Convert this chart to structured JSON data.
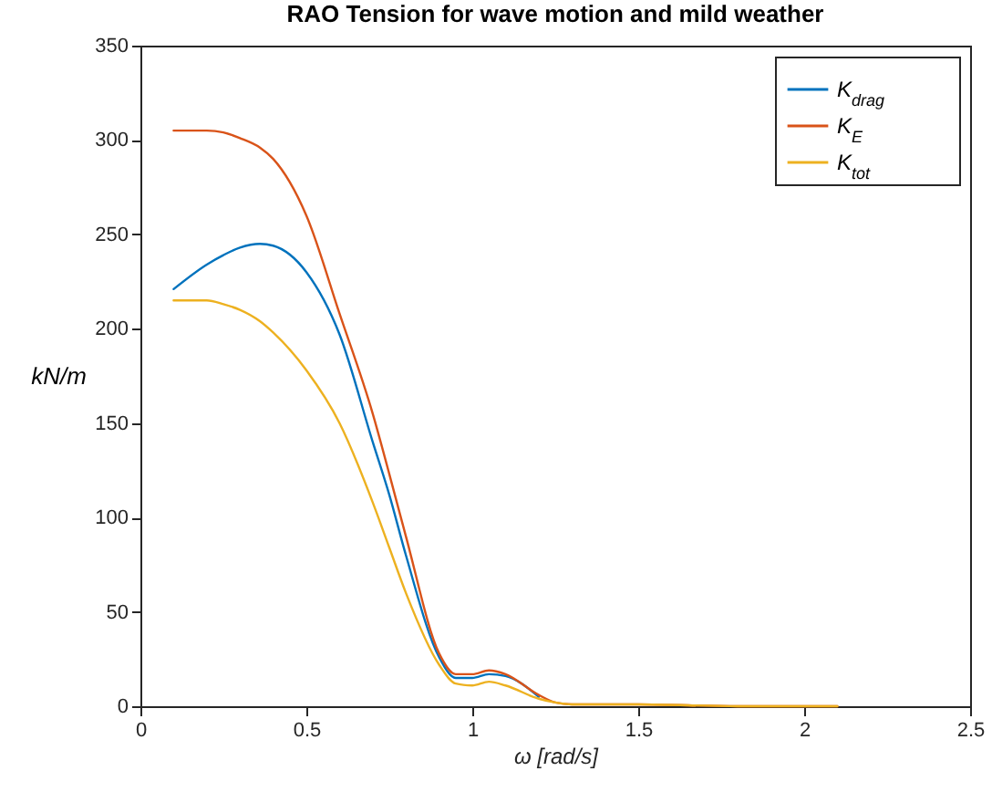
{
  "chart_data": {
    "type": "line",
    "title": "RAO Tension for wave motion and mild weather",
    "xlabel": "ω [rad/s]",
    "ylabel": "kN/m",
    "x": [
      0.1,
      0.2,
      0.25,
      0.3,
      0.36,
      0.4,
      0.5,
      0.6,
      0.7,
      0.75,
      0.8,
      0.9,
      0.95,
      1.0,
      1.05,
      1.1,
      1.2,
      1.25,
      1.3,
      1.5,
      1.8,
      2.1
    ],
    "series": [
      {
        "name": "K$_{drag}$",
        "color": "#0072bd",
        "values": [
          221,
          234,
          239,
          243,
          245,
          244,
          230,
          197,
          140,
          112,
          80,
          26,
          15,
          15,
          17,
          16,
          5,
          null,
          null,
          null,
          null,
          null
        ]
      },
      {
        "name": "K$_{E}$",
        "color": "#d95319",
        "values": [
          305,
          305,
          304,
          301,
          296,
          290,
          260,
          208,
          155,
          123,
          90,
          28,
          17,
          17,
          19,
          17,
          6,
          2,
          1,
          1,
          0,
          0
        ]
      },
      {
        "name": "K$_{tot}$",
        "color": "#edb120",
        "values": [
          215,
          215,
          213,
          210,
          204,
          198,
          178,
          150,
          108,
          84,
          60,
          22,
          12,
          11,
          13,
          11,
          4,
          2,
          1,
          1,
          0,
          0
        ]
      }
    ],
    "xlim": [
      0,
      2.5
    ],
    "xticks": [
      0,
      0.5,
      1,
      1.5,
      2,
      2.5
    ],
    "ylim": [
      0,
      350
    ],
    "yticks": [
      0,
      50,
      100,
      150,
      200,
      250,
      300,
      350
    ],
    "grid": false,
    "legend": "top right",
    "marker": "none",
    "line_style": "solid"
  }
}
